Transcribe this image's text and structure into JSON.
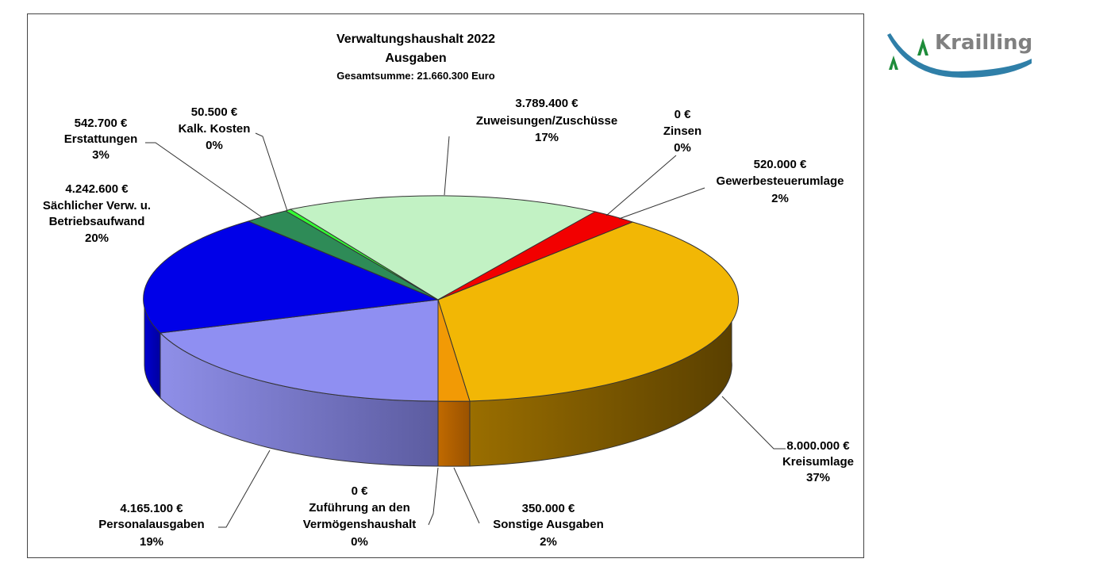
{
  "chart_data": {
    "type": "pie",
    "title": "Verwaltungshaushalt 2022",
    "subtitle": "Ausgaben",
    "total_label": "Gesamtsumme:  21.660.300 Euro",
    "slices": [
      {
        "name": "Kreisumlage",
        "value": 8000000,
        "amount": "8.000.000 €",
        "percent": "37%",
        "color": "#F2B705",
        "side": [
          "#8a6400",
          "#5c4300"
        ]
      },
      {
        "name": "Sonstige Ausgaben",
        "value": 350000,
        "amount": "350.000 €",
        "percent": "2%",
        "color": "#F29A05",
        "side": [
          "#b86a00",
          "#8f5200"
        ]
      },
      {
        "name": "Zuführung an den Vermögenshaushalt",
        "value": 0,
        "amount": "0 €",
        "percent": "0%",
        "color": "#C0C0C0",
        "side": [
          "#808080",
          "#606060"
        ]
      },
      {
        "name": "Personalausgaben",
        "value": 4165100,
        "amount": "4.165.100 €",
        "percent": "19%",
        "color": "#8F8FF2",
        "side": [
          "#8a8ae6",
          "#6060a8"
        ]
      },
      {
        "name": "Sächlicher Verw. u. Betriebsaufwand",
        "value": 4242600,
        "amount": "4.242.600 €",
        "percent": "20%",
        "color": "#0000E8",
        "side": [
          "#0000c0",
          "#000090"
        ]
      },
      {
        "name": "Erstattungen",
        "value": 542700,
        "amount": "542.700 €",
        "percent": "3%",
        "color": "#2E8B57",
        "side": [
          "#1f6b40",
          "#15502f"
        ]
      },
      {
        "name": "Kalk. Kosten",
        "value": 50500,
        "amount": "50.500 €",
        "percent": "0%",
        "color": "#33FF33",
        "side": [
          "#22aa22",
          "#188018"
        ]
      },
      {
        "name": "Zuweisungen/Zuschüsse",
        "value": 3789400,
        "amount": "3.789.400 €",
        "percent": "17%",
        "color": "#C2F2C4",
        "side": [
          "#8fc090",
          "#70a070"
        ]
      },
      {
        "name": "Zinsen",
        "value": 0,
        "amount": "0 €",
        "percent": "0%",
        "color": "#FF00FF",
        "side": [
          "#a000a0",
          "#700070"
        ]
      },
      {
        "name": "Gewerbesteuerumlage",
        "value": 520000,
        "amount": "520.000 €",
        "percent": "2%",
        "color": "#F20000",
        "side": [
          "#a00000",
          "#700000"
        ]
      }
    ]
  },
  "labels": {
    "kreisumlage": [
      "8.000.000 €",
      "Kreisumlage",
      "37%"
    ],
    "sonstige": [
      "350.000 €",
      "Sonstige Ausgaben",
      "2%"
    ],
    "zufuehrung": [
      "0 €",
      "Zuführung an den",
      "Vermögenshaushalt",
      "0%"
    ],
    "personal": [
      "4.165.100 €",
      "Personalausgaben",
      "19%"
    ],
    "saechlich": [
      "4.242.600 €",
      "Sächlicher Verw. u.",
      "Betriebsaufwand",
      "20%"
    ],
    "erstattungen": [
      "542.700 €",
      "Erstattungen",
      "3%"
    ],
    "kalk": [
      "50.500 €",
      "Kalk. Kosten",
      "0%"
    ],
    "zuweisungen": [
      "3.789.400 €",
      "Zuweisungen/Zuschüsse",
      "17%"
    ],
    "zinsen": [
      "0 €",
      "Zinsen",
      "0%"
    ],
    "gewerbe": [
      "520.000 €",
      "Gewerbesteuerumlage",
      "2%"
    ]
  },
  "logo": {
    "text": "Krailling",
    "colors": {
      "arc": "#2F7FA8",
      "trees": "#1E8C3A",
      "text": "#808080"
    }
  }
}
